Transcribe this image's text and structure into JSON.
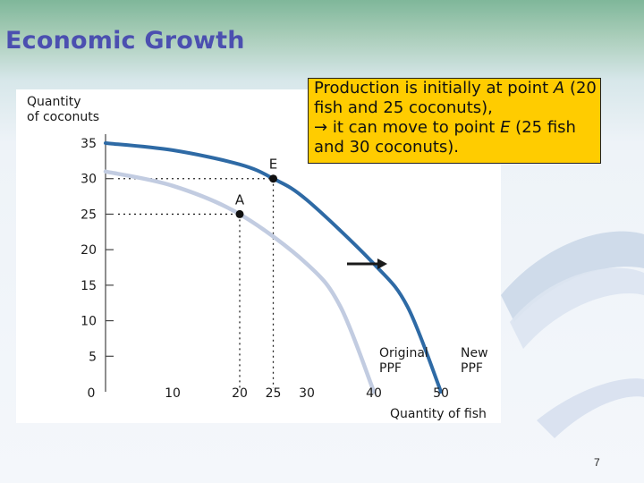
{
  "slide": {
    "title": "Economic Growth",
    "page_number": "7"
  },
  "callout": {
    "part1": "Production is initially at point ",
    "point_a": "A",
    "part2": " (20 fish and 25 coconuts),",
    "arrow": "→",
    "part3": " it can move to point ",
    "point_e": "E",
    "part4": " (25 fish and 30 coconuts)."
  },
  "colors": {
    "title": "#4b4fb0",
    "callout_bg": "#ffcc00",
    "new_ppf": "#2e6aa5",
    "original_ppf": "#c2cce1",
    "arrow": "#1a1a1a"
  },
  "chart_data": {
    "type": "line",
    "ylabel": [
      "Quantity",
      "of coconuts"
    ],
    "xlabel": "Quantity of fish",
    "xlim": [
      0,
      50
    ],
    "ylim": [
      0,
      35
    ],
    "x_ticks": [
      0,
      10,
      20,
      25,
      30,
      40,
      50
    ],
    "y_ticks": [
      5,
      10,
      15,
      20,
      25,
      30,
      35
    ],
    "series": [
      {
        "name": "Original PPF",
        "label_lines": [
          "Original",
          "PPF"
        ],
        "color": "#c2cce1",
        "x": [
          0,
          10,
          20,
          30,
          35,
          40
        ],
        "y": [
          31,
          29,
          25,
          18,
          12,
          0
        ]
      },
      {
        "name": "New PPF",
        "label_lines": [
          "New",
          "PPF"
        ],
        "color": "#2e6aa5",
        "x": [
          0,
          10,
          20,
          25,
          30,
          40,
          45,
          50
        ],
        "y": [
          35,
          34,
          32,
          30,
          27,
          18,
          12,
          0
        ]
      }
    ],
    "points": [
      {
        "label": "A",
        "x": 20,
        "y": 25
      },
      {
        "label": "E",
        "x": 25,
        "y": 30
      }
    ],
    "shift_arrow": {
      "x_from": 36,
      "x_to": 42,
      "y": 18
    },
    "grid": false
  }
}
